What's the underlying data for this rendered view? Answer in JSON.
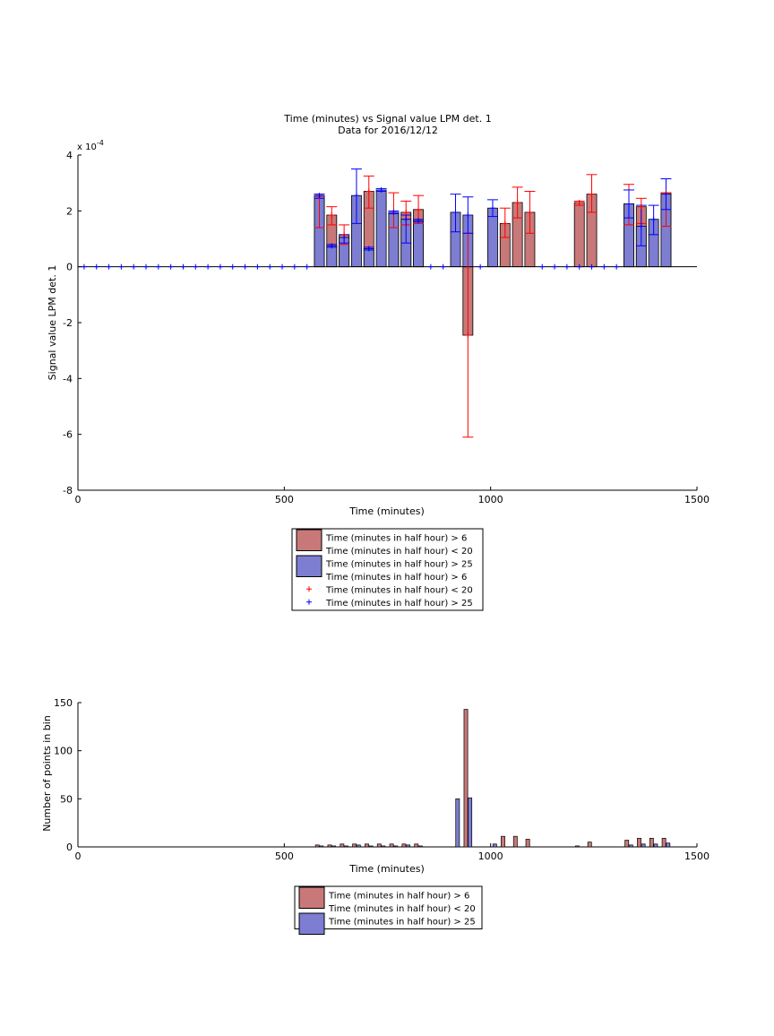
{
  "colors": {
    "red_bar": "#c87878",
    "blue_bar": "#7d7dd2",
    "red_marker": "#ff0000",
    "blue_marker": "#0000ff"
  },
  "chart_data": [
    {
      "type": "bar",
      "title": "Time (minutes) vs Signal value LPM det. 1",
      "subtitle": "Data for 2016/12/12",
      "xlabel": "Time (minutes)",
      "ylabel": "Signal value LPM det. 1",
      "y_exponent_label": "x 10",
      "y_exponent": "-4",
      "xlim": [
        0,
        1500
      ],
      "ylim": [
        -8,
        4
      ],
      "xticks": [
        0,
        500,
        1000,
        1500
      ],
      "yticks": [
        -8,
        -6,
        -4,
        -2,
        0,
        2,
        4
      ],
      "legend": [
        {
          "label": "Time (minutes in half hour) > 6",
          "kind": "bar",
          "color": "red"
        },
        {
          "label": "Time (minutes in half hour) < 20",
          "kind": "none"
        },
        {
          "label": "Time (minutes in half hour) > 25",
          "kind": "bar",
          "color": "blue"
        },
        {
          "label": "Time (minutes in half hour) > 6",
          "kind": "none"
        },
        {
          "label": "Time (minutes in half hour) < 20",
          "kind": "marker",
          "color": "red"
        },
        {
          "label": "Time (minutes in half hour) > 25",
          "kind": "marker",
          "color": "blue"
        }
      ],
      "legend_placement": "below",
      "series": [
        {
          "color": "red",
          "bars": [
            {
              "x": 585,
              "y": 2.5,
              "lo": 1.4,
              "hi": 2.6
            },
            {
              "x": 615,
              "y": 1.85,
              "lo": 1.5,
              "hi": 2.15
            },
            {
              "x": 645,
              "y": 1.15,
              "lo": 0.8,
              "hi": 1.5
            },
            {
              "x": 705,
              "y": 2.7,
              "lo": 2.1,
              "hi": 3.25
            },
            {
              "x": 765,
              "y": 1.95,
              "lo": 1.4,
              "hi": 2.65
            },
            {
              "x": 795,
              "y": 1.95,
              "lo": 1.5,
              "hi": 2.35
            },
            {
              "x": 825,
              "y": 2.05,
              "lo": 1.55,
              "hi": 2.55
            },
            {
              "x": 945,
              "y": -2.45,
              "lo": -6.1,
              "hi": 1.2
            },
            {
              "x": 1035,
              "y": 1.55,
              "lo": 1.05,
              "hi": 2.1
            },
            {
              "x": 1065,
              "y": 2.3,
              "lo": 1.75,
              "hi": 2.85
            },
            {
              "x": 1095,
              "y": 1.95,
              "lo": 1.2,
              "hi": 2.7
            },
            {
              "x": 1215,
              "y": 2.3,
              "lo": 2.2,
              "hi": 2.35
            },
            {
              "x": 1245,
              "y": 2.6,
              "lo": 1.95,
              "hi": 3.3
            },
            {
              "x": 1335,
              "y": 2.25,
              "lo": 1.5,
              "hi": 2.95
            },
            {
              "x": 1365,
              "y": 2.15,
              "lo": 1.55,
              "hi": 2.45
            },
            {
              "x": 1425,
              "y": 2.65,
              "lo": 1.45,
              "hi": 2.65
            }
          ]
        },
        {
          "color": "blue",
          "bars": [
            {
              "x": 585,
              "y": 2.55,
              "lo": 2.45,
              "hi": 2.6
            },
            {
              "x": 615,
              "y": 0.75,
              "lo": 0.7,
              "hi": 0.8
            },
            {
              "x": 645,
              "y": 1.05,
              "lo": 0.85,
              "hi": 1.15
            },
            {
              "x": 675,
              "y": 2.55,
              "lo": 1.55,
              "hi": 3.5
            },
            {
              "x": 705,
              "y": 0.65,
              "lo": 0.6,
              "hi": 0.7
            },
            {
              "x": 735,
              "y": 2.75,
              "lo": 2.7,
              "hi": 2.8
            },
            {
              "x": 765,
              "y": 1.95,
              "lo": 1.9,
              "hi": 2.0
            },
            {
              "x": 795,
              "y": 1.7,
              "lo": 0.85,
              "hi": 1.85
            },
            {
              "x": 825,
              "y": 1.65,
              "lo": 1.6,
              "hi": 1.7
            },
            {
              "x": 915,
              "y": 1.95,
              "lo": 1.25,
              "hi": 2.6
            },
            {
              "x": 945,
              "y": 1.85,
              "lo": 1.2,
              "hi": 2.5
            },
            {
              "x": 1005,
              "y": 2.1,
              "lo": 1.8,
              "hi": 2.4
            },
            {
              "x": 1335,
              "y": 2.25,
              "lo": 1.75,
              "hi": 2.75
            },
            {
              "x": 1365,
              "y": 1.45,
              "lo": 0.75,
              "hi": 2.2
            },
            {
              "x": 1395,
              "y": 1.7,
              "lo": 1.15,
              "hi": 2.2
            },
            {
              "x": 1425,
              "y": 2.6,
              "lo": 2.05,
              "hi": 3.15
            }
          ]
        }
      ],
      "zero_markers_blue_x": [
        15,
        45,
        75,
        105,
        135,
        165,
        195,
        225,
        255,
        285,
        315,
        345,
        375,
        405,
        435,
        465,
        495,
        525,
        555,
        855,
        885,
        975,
        1125,
        1155,
        1185,
        1215,
        1245,
        1275,
        1305
      ],
      "bar_width_minutes": 24
    },
    {
      "type": "bar",
      "xlabel": "Time (minutes)",
      "ylabel": "Number of points in bin",
      "xlim": [
        0,
        1500
      ],
      "ylim": [
        0,
        150
      ],
      "xticks": [
        0,
        500,
        1000,
        1500
      ],
      "yticks": [
        0,
        50,
        100,
        150
      ],
      "legend": [
        {
          "label": "Time (minutes in half hour) > 6",
          "kind": "bar",
          "color": "red"
        },
        {
          "label": "Time (minutes in half hour) < 20",
          "kind": "none"
        },
        {
          "label": "Time (minutes in half hour) > 25",
          "kind": "bar",
          "color": "blue"
        }
      ],
      "legend_placement": "below",
      "series": [
        {
          "color": "red",
          "bars": [
            {
              "x": 580,
              "y": 2
            },
            {
              "x": 610,
              "y": 2
            },
            {
              "x": 640,
              "y": 3
            },
            {
              "x": 670,
              "y": 3
            },
            {
              "x": 700,
              "y": 3
            },
            {
              "x": 730,
              "y": 3
            },
            {
              "x": 760,
              "y": 3
            },
            {
              "x": 790,
              "y": 3
            },
            {
              "x": 820,
              "y": 3
            },
            {
              "x": 940,
              "y": 143
            },
            {
              "x": 1030,
              "y": 11
            },
            {
              "x": 1060,
              "y": 11
            },
            {
              "x": 1090,
              "y": 8
            },
            {
              "x": 1210,
              "y": 1
            },
            {
              "x": 1240,
              "y": 5
            },
            {
              "x": 1330,
              "y": 7
            },
            {
              "x": 1360,
              "y": 9
            },
            {
              "x": 1390,
              "y": 9
            },
            {
              "x": 1420,
              "y": 9
            }
          ]
        },
        {
          "color": "blue",
          "bars": [
            {
              "x": 590,
              "y": 1
            },
            {
              "x": 620,
              "y": 1
            },
            {
              "x": 650,
              "y": 1
            },
            {
              "x": 680,
              "y": 2
            },
            {
              "x": 710,
              "y": 1
            },
            {
              "x": 740,
              "y": 1
            },
            {
              "x": 770,
              "y": 1
            },
            {
              "x": 800,
              "y": 2
            },
            {
              "x": 830,
              "y": 1
            },
            {
              "x": 920,
              "y": 50
            },
            {
              "x": 950,
              "y": 51
            },
            {
              "x": 1010,
              "y": 3
            },
            {
              "x": 1340,
              "y": 2
            },
            {
              "x": 1370,
              "y": 3
            },
            {
              "x": 1400,
              "y": 3
            },
            {
              "x": 1430,
              "y": 4
            }
          ]
        }
      ],
      "bar_width_minutes": 9
    }
  ]
}
